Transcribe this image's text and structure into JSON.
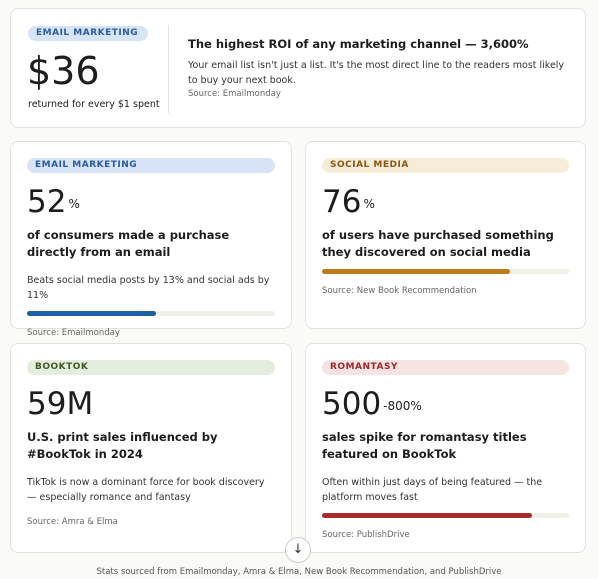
{
  "hero": {
    "tag": "EMAIL MARKETING",
    "value": "$36",
    "caption": "returned for every $1 spent",
    "headline": "The highest ROI of any marketing channel — 3,600%",
    "body": "Your email list isn't just a list. It's the most direct line to the readers most likely to buy your next book.",
    "source": "Source: Emailmonday"
  },
  "bar_range": [
    0,
    100
  ],
  "cards": [
    {
      "tag": "EMAIL MARKETING",
      "value": 52,
      "unit": "%",
      "headline": "of consumers made a purchase directly from an email",
      "note": "Beats social media posts by 13% and social ads by 11%",
      "bar_value": 52,
      "bar_color": "#1f5fa6",
      "tag_bg": "#d7e4f6",
      "tag_color": "#2b5b9e",
      "source": "Source: Emailmonday"
    },
    {
      "tag": "SOCIAL MEDIA",
      "value": 76,
      "unit": "%",
      "headline": "of users have purchased something they discovered on social media",
      "bar_value": 76,
      "bar_color": "#bf7a1c",
      "tag_bg": "#f6edd8",
      "tag_color": "#8a5812",
      "source": "Source: New Book Recommendation"
    },
    {
      "tag": "BOOKTOK",
      "value": "59M",
      "headline": "U.S. print sales influenced by #BookTok in 2024",
      "note": "TikTok is now a dominant force for book discovery — especially romance and fantasy",
      "tag_bg": "#e4eedd",
      "tag_color": "#3c5a28",
      "source": "Source: Amra & Elma"
    },
    {
      "tag": "ROMANTASY",
      "value": 500,
      "unit": "-800%",
      "headline": "sales spike for romantasy titles featured on BookTok",
      "note": "Often within just days of being featured — the platform moves fast",
      "bar_value": 85,
      "bar_color": "#a82b2b",
      "tag_bg": "#f6e3e3",
      "tag_color": "#9a2a2a",
      "source": "Source: PublishDrive"
    }
  ],
  "footer": "Stats sourced from Emailmonday, Amra & Elma, New Book Recommendation, and PublishDrive"
}
